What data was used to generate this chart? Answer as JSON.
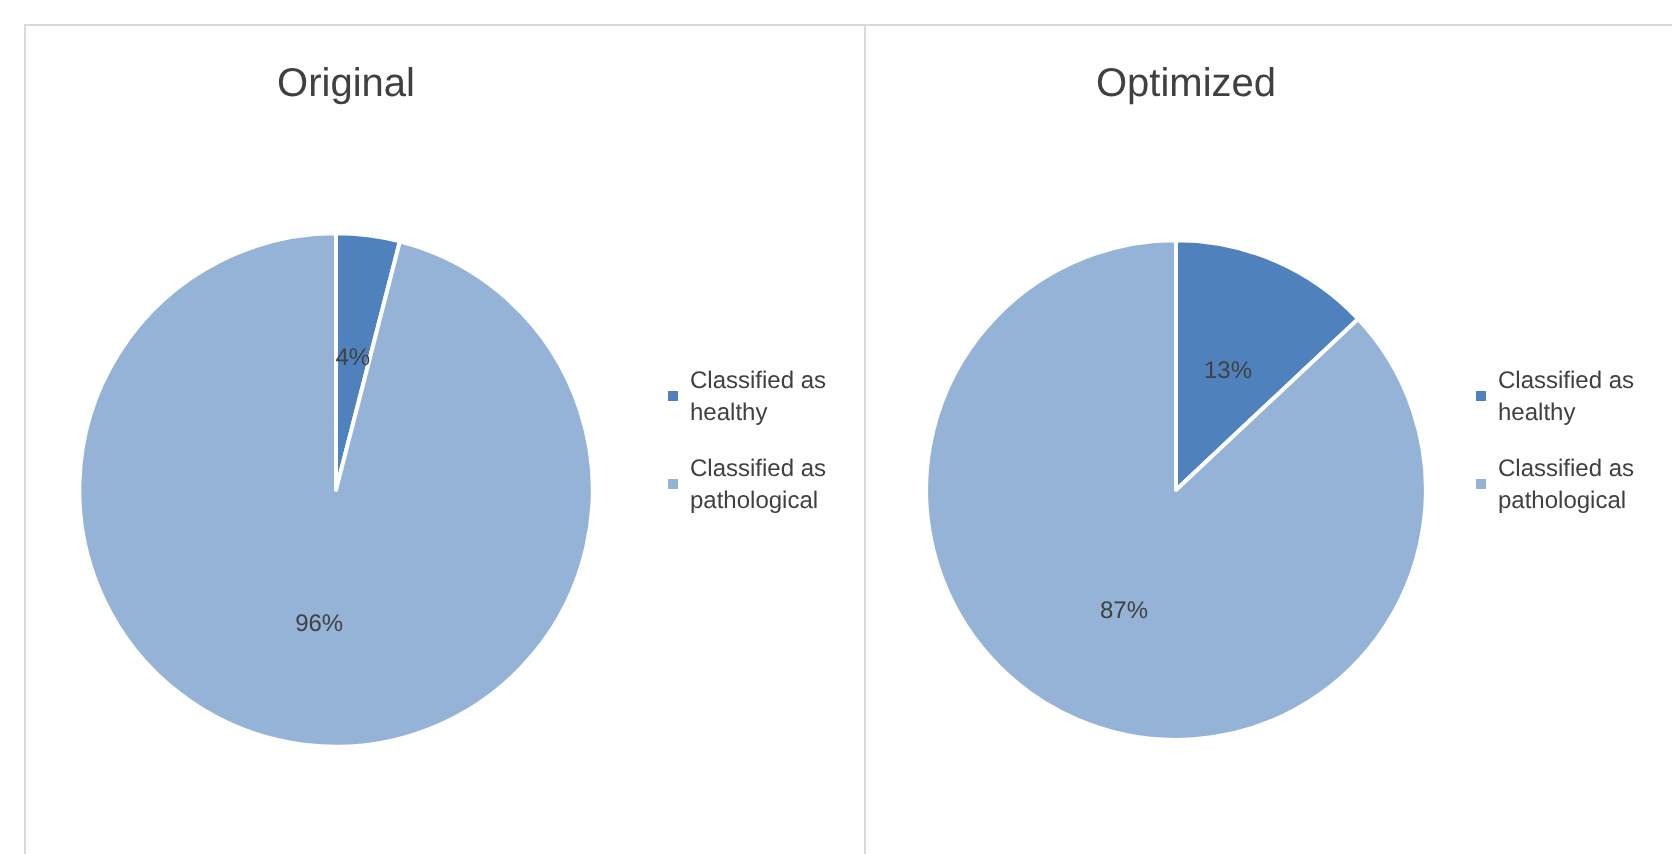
{
  "chart_data": [
    {
      "type": "pie",
      "title": "Original",
      "categories": [
        "Classified as healthy",
        "Classified as pathological"
      ],
      "values": [
        4,
        96
      ],
      "colors": [
        "#4f81bd",
        "#95b3d7"
      ],
      "value_labels": [
        "4%",
        "96%"
      ],
      "legend": "right"
    },
    {
      "type": "pie",
      "title": "Optimized",
      "categories": [
        "Classified as healthy",
        "Classified as pathological"
      ],
      "values": [
        13,
        87
      ],
      "colors": [
        "#4f81bd",
        "#95b3d7"
      ],
      "value_labels": [
        "13%",
        "87%"
      ],
      "legend": "right"
    }
  ]
}
